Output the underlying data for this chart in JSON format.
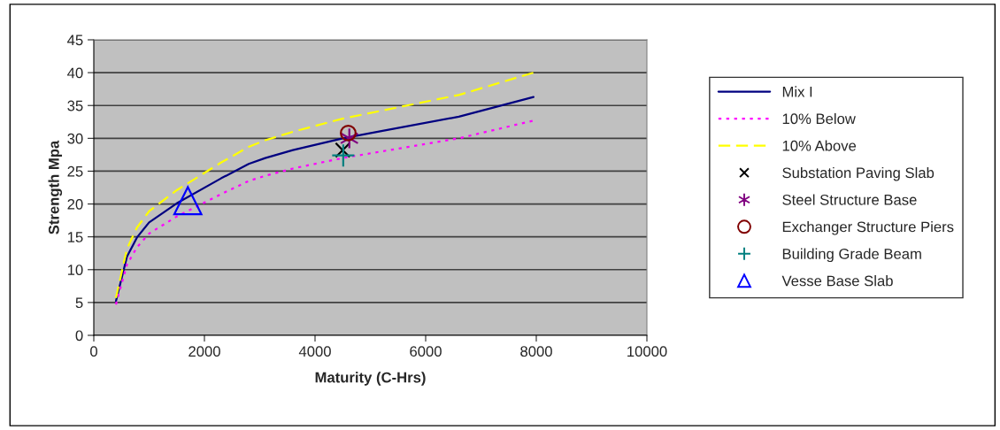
{
  "chart_data": {
    "type": "line",
    "xlabel": "Maturity (C-Hrs)",
    "ylabel": "Strength Mpa",
    "xlim": [
      0,
      10000
    ],
    "xticks": [
      0,
      2000,
      4000,
      6000,
      8000,
      10000
    ],
    "ylim": [
      0,
      45
    ],
    "yticks": [
      0,
      5,
      10,
      15,
      20,
      25,
      30,
      35,
      40,
      45
    ],
    "grid": "y",
    "legend": "right",
    "series": [
      {
        "name": "Mix I",
        "color": "#000080",
        "line_style": "solid",
        "marker": "none",
        "x": [
          400,
          600,
          780,
          1000,
          1500,
          2300,
          2800,
          3100,
          3600,
          4500,
          5200,
          6600,
          7950
        ],
        "values": [
          5.2,
          12,
          14.9,
          17.2,
          20.1,
          23.9,
          26.1,
          27,
          28.2,
          30,
          31.1,
          33.3,
          36.3
        ]
      },
      {
        "name": "10% Below",
        "color": "#ff00ff",
        "line_style": "dotted",
        "marker": "none",
        "x": [
          400,
          600,
          780,
          1000,
          1500,
          2300,
          2800,
          3100,
          3600,
          4500,
          5200,
          6600,
          7950
        ],
        "values": [
          4.7,
          10.8,
          13.4,
          15.5,
          18.1,
          21.5,
          23.5,
          24.3,
          25.4,
          27,
          28,
          30,
          32.7
        ]
      },
      {
        "name": "10% Above",
        "color": "#ffff00",
        "line_style": "dashed",
        "marker": "none",
        "x": [
          400,
          600,
          780,
          1000,
          1500,
          2300,
          2800,
          3100,
          3600,
          4500,
          5200,
          6600,
          7950
        ],
        "values": [
          5.7,
          13.2,
          16.4,
          18.9,
          22.1,
          26.3,
          28.7,
          29.7,
          31,
          33,
          34.2,
          36.6,
          40
        ]
      },
      {
        "name": "Substation Paving Slab",
        "type": "scatter",
        "color": "#000000",
        "marker": "cross",
        "x": [
          4500
        ],
        "values": [
          28.2
        ]
      },
      {
        "name": "Steel Structure Base",
        "type": "scatter",
        "color": "#800080",
        "marker": "cross",
        "x": [
          4620
        ],
        "values": [
          30
        ]
      },
      {
        "name": "Exchanger Structure Piers",
        "type": "scatter",
        "color": "#800000",
        "marker": "circle",
        "x": [
          4600
        ],
        "values": [
          30.8
        ]
      },
      {
        "name": "Building Grade Beam",
        "type": "scatter",
        "color": "#008080",
        "marker": "cross",
        "x": [
          4510
        ],
        "values": [
          27.4
        ]
      },
      {
        "name": "Vesse Base Slab",
        "type": "scatter",
        "color": "#0000ff",
        "marker": "triangle",
        "x": [
          1700
        ],
        "values": [
          20.5
        ]
      }
    ]
  }
}
